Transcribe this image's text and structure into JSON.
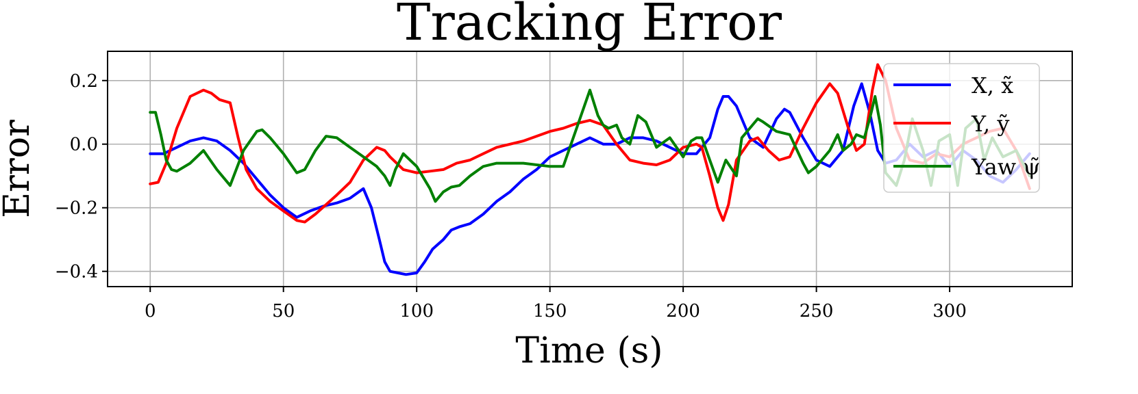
{
  "chart_data": {
    "type": "line",
    "title": "Tracking Error",
    "xlabel": "Time (s)",
    "ylabel": "Error",
    "xlim": [
      -16,
      346
    ],
    "ylim": [
      -0.448,
      0.292
    ],
    "xticks": [
      0,
      50,
      100,
      150,
      200,
      250,
      300
    ],
    "yticks": [
      -0.4,
      -0.2,
      0.0,
      0.2
    ],
    "xtick_labels": [
      "0",
      "50",
      "100",
      "150",
      "200",
      "250",
      "300"
    ],
    "ytick_labels": [
      "−0.4",
      "−0.2",
      "0.0",
      "0.2"
    ],
    "grid": true,
    "legend_position": "top-right",
    "series": [
      {
        "name": "X, x̃",
        "color": "#0000ff",
        "x": [
          0,
          5,
          10,
          15,
          20,
          25,
          30,
          35,
          40,
          45,
          50,
          55,
          60,
          65,
          70,
          75,
          80,
          83,
          86,
          88,
          90,
          93,
          96,
          100,
          103,
          106,
          110,
          113,
          116,
          120,
          125,
          130,
          135,
          140,
          145,
          150,
          155,
          160,
          165,
          170,
          175,
          180,
          185,
          190,
          195,
          200,
          205,
          210,
          213,
          215,
          217,
          220,
          225,
          230,
          235,
          238,
          240,
          245,
          250,
          255,
          260,
          264,
          267,
          270,
          273,
          276,
          280,
          285,
          290,
          295,
          300,
          305,
          310,
          315,
          320,
          325,
          330
        ],
        "y": [
          -0.03,
          -0.03,
          -0.01,
          0.01,
          0.02,
          0.01,
          -0.02,
          -0.06,
          -0.11,
          -0.16,
          -0.2,
          -0.23,
          -0.21,
          -0.195,
          -0.185,
          -0.17,
          -0.14,
          -0.2,
          -0.3,
          -0.37,
          -0.4,
          -0.405,
          -0.41,
          -0.405,
          -0.37,
          -0.33,
          -0.3,
          -0.27,
          -0.26,
          -0.25,
          -0.22,
          -0.18,
          -0.15,
          -0.11,
          -0.08,
          -0.04,
          -0.02,
          0.0,
          0.02,
          0.0,
          0.0,
          0.02,
          0.02,
          0.01,
          -0.01,
          -0.03,
          -0.03,
          0.02,
          0.11,
          0.15,
          0.15,
          0.12,
          0.02,
          -0.01,
          0.08,
          0.11,
          0.1,
          0.02,
          -0.05,
          -0.07,
          -0.02,
          0.12,
          0.19,
          0.1,
          -0.02,
          -0.06,
          -0.05,
          0.0,
          -0.04,
          -0.02,
          -0.07,
          -0.02,
          -0.05,
          -0.1,
          -0.12,
          -0.08,
          -0.03
        ]
      },
      {
        "name": "Y, ỹ",
        "color": "#ff0000",
        "x": [
          0,
          3,
          6,
          10,
          15,
          20,
          23,
          26,
          30,
          33,
          36,
          40,
          45,
          50,
          55,
          58,
          62,
          66,
          70,
          75,
          80,
          85,
          88,
          90,
          95,
          100,
          105,
          110,
          115,
          120,
          125,
          130,
          140,
          150,
          155,
          160,
          165,
          170,
          175,
          180,
          185,
          190,
          195,
          200,
          205,
          207,
          210,
          213,
          215,
          217,
          220,
          225,
          228,
          232,
          236,
          240,
          245,
          250,
          255,
          258,
          262,
          265,
          268,
          271,
          273,
          276,
          280,
          285,
          290,
          295,
          300,
          305,
          310,
          315,
          320,
          325,
          330
        ],
        "y": [
          -0.125,
          -0.12,
          -0.06,
          0.05,
          0.15,
          0.17,
          0.16,
          0.14,
          0.13,
          0.02,
          -0.08,
          -0.14,
          -0.18,
          -0.21,
          -0.24,
          -0.245,
          -0.22,
          -0.19,
          -0.16,
          -0.12,
          -0.05,
          -0.01,
          -0.02,
          -0.04,
          -0.08,
          -0.09,
          -0.085,
          -0.08,
          -0.06,
          -0.05,
          -0.03,
          -0.01,
          0.01,
          0.04,
          0.05,
          0.065,
          0.075,
          0.06,
          0.0,
          -0.05,
          -0.06,
          -0.065,
          -0.05,
          -0.01,
          0.0,
          -0.01,
          -0.1,
          -0.2,
          -0.24,
          -0.19,
          -0.05,
          0.01,
          0.02,
          -0.02,
          -0.05,
          -0.04,
          0.05,
          0.13,
          0.19,
          0.16,
          0.05,
          -0.02,
          0.0,
          0.17,
          0.25,
          0.2,
          0.05,
          -0.05,
          -0.06,
          -0.03,
          -0.04,
          0.0,
          0.02,
          0.04,
          0.05,
          -0.02,
          -0.14
        ]
      },
      {
        "name": "Yaw ψ̃",
        "color": "#008000",
        "x": [
          0,
          2,
          4,
          6,
          8,
          10,
          15,
          20,
          25,
          30,
          35,
          40,
          42,
          45,
          50,
          55,
          58,
          62,
          66,
          70,
          75,
          80,
          85,
          88,
          90,
          92,
          95,
          100,
          105,
          107,
          110,
          113,
          116,
          120,
          125,
          130,
          140,
          150,
          155,
          160,
          165,
          168,
          170,
          172,
          175,
          177,
          180,
          183,
          186,
          190,
          195,
          200,
          203,
          205,
          207,
          210,
          213,
          216,
          220,
          222,
          225,
          228,
          230,
          235,
          240,
          245,
          247,
          250,
          255,
          258,
          260,
          263,
          265,
          268,
          270,
          272,
          274,
          276,
          280,
          283,
          286,
          290,
          293,
          296,
          300,
          303,
          306,
          310,
          313,
          316,
          320,
          325,
          330
        ],
        "y": [
          0.1,
          0.1,
          0.03,
          -0.05,
          -0.08,
          -0.085,
          -0.06,
          -0.02,
          -0.08,
          -0.13,
          -0.02,
          0.04,
          0.045,
          0.02,
          -0.03,
          -0.09,
          -0.08,
          -0.02,
          0.025,
          0.02,
          -0.01,
          -0.04,
          -0.07,
          -0.1,
          -0.13,
          -0.08,
          -0.03,
          -0.07,
          -0.14,
          -0.18,
          -0.15,
          -0.135,
          -0.13,
          -0.1,
          -0.07,
          -0.06,
          -0.06,
          -0.07,
          -0.07,
          0.05,
          0.17,
          0.09,
          0.06,
          0.05,
          0.06,
          0.02,
          0.0,
          0.09,
          0.07,
          -0.01,
          0.02,
          -0.04,
          0.01,
          0.02,
          0.02,
          -0.05,
          -0.12,
          -0.05,
          -0.1,
          0.02,
          0.05,
          0.08,
          0.07,
          0.04,
          0.03,
          -0.06,
          -0.09,
          -0.07,
          -0.02,
          0.03,
          -0.02,
          0.0,
          0.03,
          0.02,
          0.08,
          0.15,
          0.06,
          -0.09,
          -0.13,
          -0.05,
          0.08,
          -0.02,
          -0.13,
          0.01,
          0.03,
          -0.13,
          0.05,
          0.08,
          -0.05,
          0.02,
          -0.04,
          -0.02,
          -0.1
        ]
      }
    ]
  }
}
